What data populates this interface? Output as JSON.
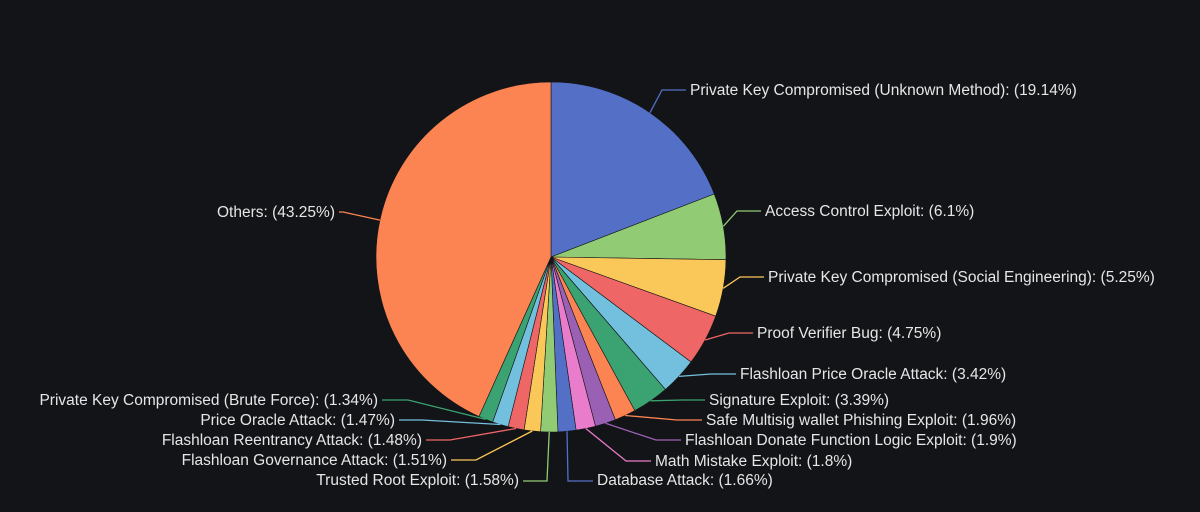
{
  "chart_data": {
    "type": "pie",
    "title": "",
    "slices": [
      {
        "label": "Private Key Compromised (Unknown Method): (19.14%)",
        "value": 19.14,
        "color": "#5470c6"
      },
      {
        "label": "Access Control Exploit: (6.1%)",
        "value": 6.1,
        "color": "#91cc75"
      },
      {
        "label": "Private Key Compromised (Social Engineering): (5.25%)",
        "value": 5.25,
        "color": "#fac858"
      },
      {
        "label": "Proof Verifier Bug: (4.75%)",
        "value": 4.75,
        "color": "#ee6666"
      },
      {
        "label": "Flashloan Price Oracle Attack: (3.42%)",
        "value": 3.42,
        "color": "#73c0de"
      },
      {
        "label": "Signature Exploit: (3.39%)",
        "value": 3.39,
        "color": "#3ba272"
      },
      {
        "label": "Safe Multisig wallet Phishing Exploit: (1.96%)",
        "value": 1.96,
        "color": "#fc8452"
      },
      {
        "label": "Flashloan Donate Function Logic Exploit: (1.9%)",
        "value": 1.9,
        "color": "#9a60b4"
      },
      {
        "label": "Math Mistake Exploit: (1.8%)",
        "value": 1.8,
        "color": "#ea7ccc"
      },
      {
        "label": "Database Attack: (1.66%)",
        "value": 1.66,
        "color": "#5470c6"
      },
      {
        "label": "Trusted Root Exploit: (1.58%)",
        "value": 1.58,
        "color": "#91cc75"
      },
      {
        "label": "Flashloan Governance Attack: (1.51%)",
        "value": 1.51,
        "color": "#fac858"
      },
      {
        "label": "Flashloan Reentrancy Attack: (1.48%)",
        "value": 1.48,
        "color": "#ee6666"
      },
      {
        "label": "Price Oracle Attack: (1.47%)",
        "value": 1.47,
        "color": "#73c0de"
      },
      {
        "label": "Private Key Compromised (Brute Force): (1.34%)",
        "value": 1.34,
        "color": "#3ba272"
      },
      {
        "label": "Others: (43.25%)",
        "value": 43.25,
        "color": "#fc8452"
      }
    ],
    "start_angle": "12 o'clock",
    "direction": "clockwise",
    "legend": "none"
  }
}
